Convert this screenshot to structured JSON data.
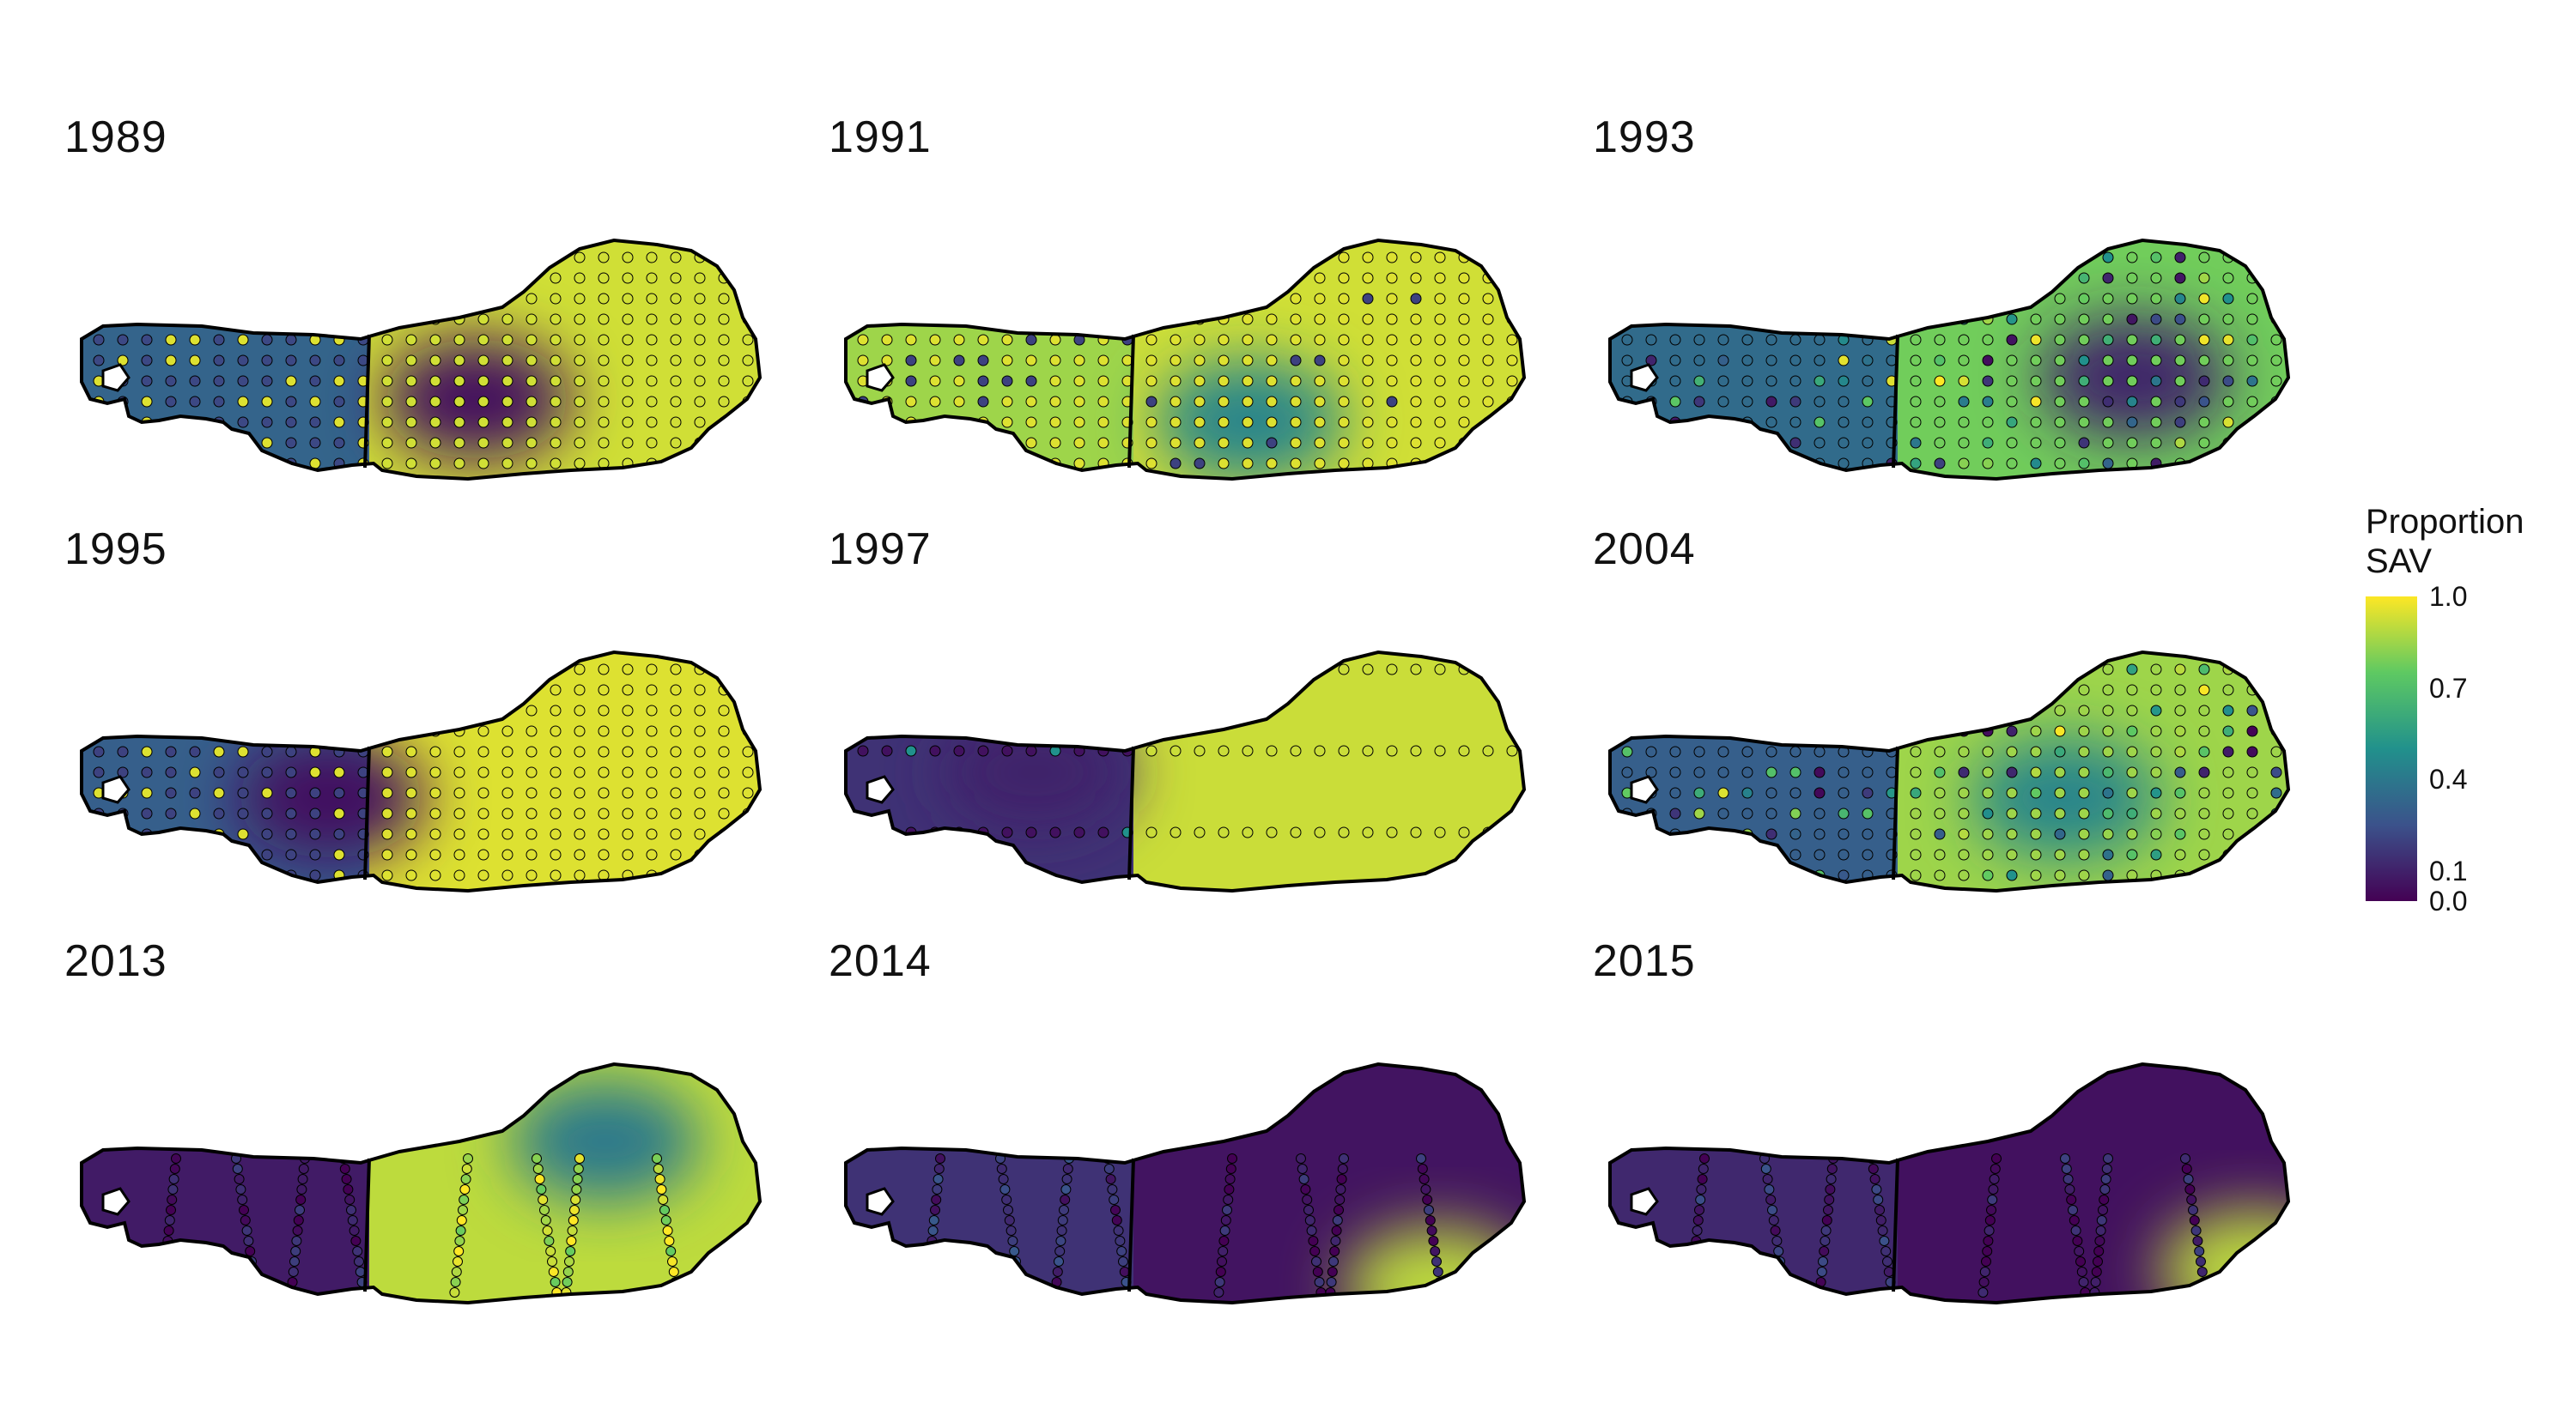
{
  "panels": [
    {
      "year": "1989",
      "value_levels": {
        "west": 0.32,
        "east": 0.93,
        "low_spot": 0.05,
        "point_pattern": "mixed_west"
      }
    },
    {
      "year": "1991",
      "value_levels": {
        "west": 0.85,
        "east": 0.93,
        "low_spot": 0.45,
        "point_pattern": "mostly_high"
      }
    },
    {
      "year": "1993",
      "value_levels": {
        "west": 0.35,
        "east": 0.78,
        "low_spot": 0.1,
        "point_pattern": "mixed"
      }
    },
    {
      "year": "1995",
      "value_levels": {
        "west": 0.3,
        "east": 0.95,
        "low_spot": 0.05,
        "point_pattern": "mixed_west"
      }
    },
    {
      "year": "1997",
      "value_levels": {
        "west": 0.15,
        "east": 0.92,
        "low_spot": 0.1,
        "point_pattern": "sparse_rows"
      }
    },
    {
      "year": "2004",
      "value_levels": {
        "west": 0.3,
        "east": 0.85,
        "low_spot": 0.45,
        "point_pattern": "mixed"
      }
    },
    {
      "year": "2013",
      "value_levels": {
        "west": 0.08,
        "east": 0.9,
        "low_spot": 0.4,
        "point_pattern": "transects"
      }
    },
    {
      "year": "2014",
      "value_levels": {
        "west": 0.15,
        "east": 0.06,
        "low_spot": 0.9,
        "point_pattern": "transects"
      }
    },
    {
      "year": "2015",
      "value_levels": {
        "west": 0.12,
        "east": 0.05,
        "low_spot": 0.9,
        "point_pattern": "transects"
      }
    }
  ],
  "legend": {
    "title": "Proportion SAV",
    "ticks": [
      {
        "label": "1.0",
        "value": 1.0
      },
      {
        "label": "0.7",
        "value": 0.7
      },
      {
        "label": "0.4",
        "value": 0.4
      },
      {
        "label": "0.1",
        "value": 0.1
      },
      {
        "label": "0.0",
        "value": 0.0
      }
    ],
    "colors": [
      "#440154",
      "#3b528b",
      "#21918c",
      "#5ec962",
      "#fde725"
    ]
  }
}
